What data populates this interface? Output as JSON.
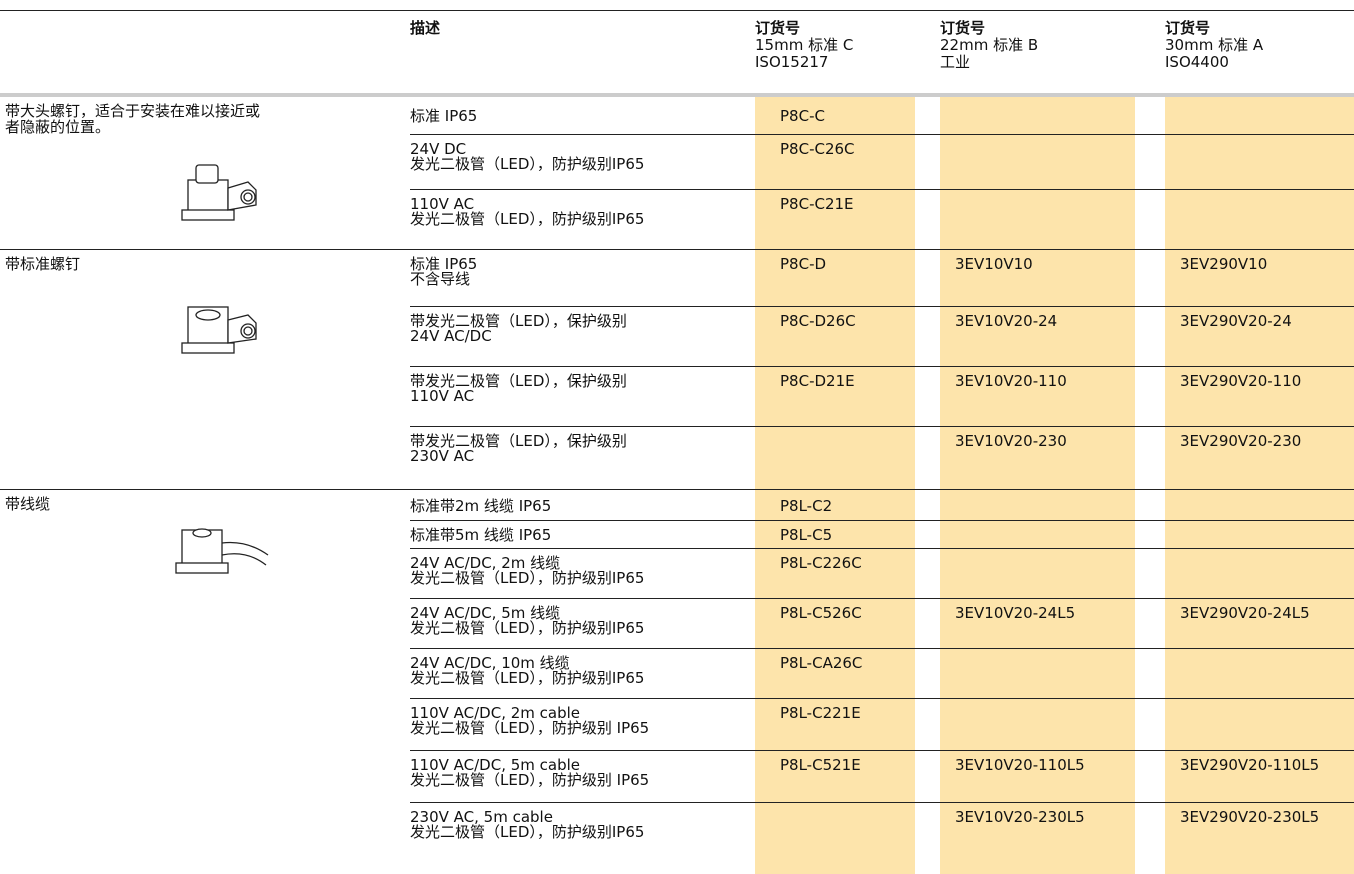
{
  "header": {
    "description": "描述",
    "columns": [
      {
        "title": "订货号",
        "lines": [
          "15mm 标准 C",
          "ISO15217"
        ]
      },
      {
        "title": "订货号",
        "lines": [
          "22mm 标准 B",
          "工业"
        ]
      },
      {
        "title": "订货号",
        "lines": [
          "30mm 标准 A",
          "ISO4400"
        ]
      }
    ]
  },
  "groups": [
    {
      "label": [
        "带大头螺钉，适合于安装在难以接近或",
        "者隐蔽的位置。"
      ],
      "rows": [
        {
          "description": [
            "标准 IP65"
          ],
          "codes": [
            "P8C-C",
            null,
            null
          ]
        },
        {
          "description": [
            "24V DC",
            "发光二极管（LED），防护级别IP65"
          ],
          "codes": [
            "P8C-C26C",
            null,
            null
          ]
        },
        {
          "description": [
            "110V AC",
            "发光二极管（LED），防护级别IP65"
          ],
          "codes": [
            "P8C-C21E",
            null,
            null
          ]
        }
      ]
    },
    {
      "label": [
        "带标准螺钉"
      ],
      "rows": [
        {
          "description": [
            "标准 IP65",
            "不含导线"
          ],
          "codes": [
            "P8C-D",
            "3EV10V10",
            "3EV290V10"
          ]
        },
        {
          "description": [
            "带发光二极管（LED），保护级别",
            "24V AC/DC"
          ],
          "codes": [
            "P8C-D26C",
            "3EV10V20-24",
            "3EV290V20-24"
          ]
        },
        {
          "description": [
            "带发光二极管（LED），保护级别",
            "110V AC"
          ],
          "codes": [
            "P8C-D21E",
            "3EV10V20-110",
            "3EV290V20-110"
          ]
        },
        {
          "description": [
            "带发光二极管（LED），保护级别",
            "230V AC"
          ],
          "codes": [
            null,
            "3EV10V20-230",
            "3EV290V20-230"
          ]
        }
      ]
    },
    {
      "label": [
        "带线缆"
      ],
      "rows": [
        {
          "description": [
            "标准带2m 线缆 IP65"
          ],
          "codes": [
            "P8L-C2",
            null,
            null
          ]
        },
        {
          "description": [
            "标准带5m 线缆 IP65"
          ],
          "codes": [
            "P8L-C5",
            null,
            null
          ]
        },
        {
          "description": [
            "24V AC/DC, 2m 线缆",
            "发光二极管（LED），防护级别IP65"
          ],
          "codes": [
            "P8L-C226C",
            null,
            null
          ]
        },
        {
          "description": [
            "24V AC/DC, 5m 线缆",
            "发光二极管（LED），防护级别IP65"
          ],
          "codes": [
            "P8L-C526C",
            "3EV10V20-24L5",
            "3EV290V20-24L5"
          ]
        },
        {
          "description": [
            "24V AC/DC, 10m 线缆",
            "发光二极管（LED），防护级别IP65"
          ],
          "codes": [
            "P8L-CA26C",
            null,
            null
          ]
        },
        {
          "description": [
            "110V AC/DC, 2m cable",
            "发光二极管（LED），防护级别 IP65"
          ],
          "codes": [
            "P8L-C221E",
            null,
            null
          ]
        },
        {
          "description": [
            "110V AC/DC, 5m cable",
            "发光二极管（LED），防护级别 IP65"
          ],
          "codes": [
            "P8L-C521E",
            "3EV10V20-110L5",
            "3EV290V20-110L5"
          ]
        },
        {
          "description": [
            "230V AC, 5m cable",
            "发光二极管（LED），防护级别IP65"
          ],
          "codes": [
            null,
            "3EV10V20-230L5",
            "3EV290V20-230L5"
          ]
        }
      ]
    }
  ]
}
